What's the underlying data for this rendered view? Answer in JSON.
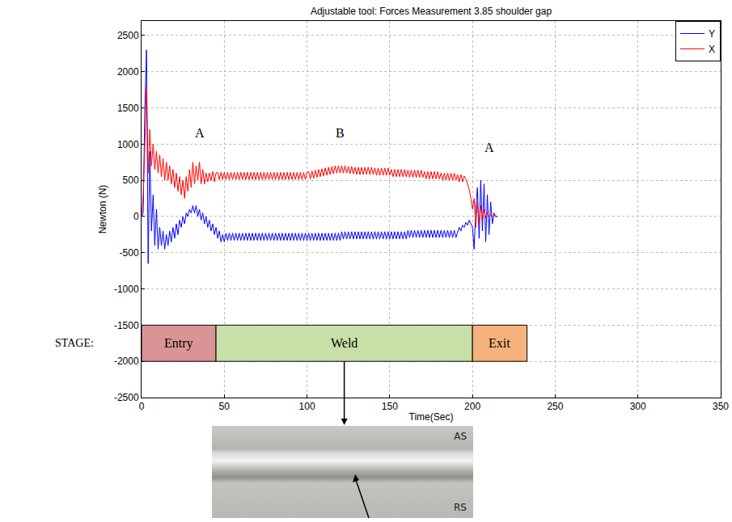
{
  "chart_data": {
    "type": "line",
    "title": "Adjustable tool: Forces Measurement 3.85 shoulder gap",
    "x_label": "Time(Sec)",
    "y_label": "Newton (N)",
    "x": [
      0,
      1,
      2,
      3,
      4,
      5,
      6,
      7,
      8,
      9,
      10,
      11,
      12,
      13,
      14,
      15,
      16,
      17,
      18,
      19,
      20,
      21,
      22,
      23,
      24,
      25,
      26,
      27,
      28,
      29,
      30,
      31,
      32,
      33,
      34,
      35,
      36,
      37,
      38,
      39,
      40,
      41,
      42,
      43,
      44,
      45,
      46,
      47,
      48,
      49,
      50,
      51,
      52,
      53,
      54,
      55,
      56,
      57,
      58,
      59,
      60,
      61,
      62,
      63,
      64,
      65,
      66,
      67,
      68,
      69,
      70,
      71,
      72,
      73,
      74,
      75,
      76,
      77,
      78,
      79,
      80,
      81,
      82,
      83,
      84,
      85,
      86,
      87,
      88,
      89,
      90,
      91,
      92,
      93,
      94,
      95,
      96,
      97,
      98,
      99,
      100,
      101,
      102,
      103,
      104,
      105,
      106,
      107,
      108,
      109,
      110,
      111,
      112,
      113,
      114,
      115,
      116,
      117,
      118,
      119,
      120,
      121,
      122,
      123,
      124,
      125,
      126,
      127,
      128,
      129,
      130,
      131,
      132,
      133,
      134,
      135,
      136,
      137,
      138,
      139,
      140,
      141,
      142,
      143,
      144,
      145,
      146,
      147,
      148,
      149,
      150,
      151,
      152,
      153,
      154,
      155,
      156,
      157,
      158,
      159,
      160,
      161,
      162,
      163,
      164,
      165,
      166,
      167,
      168,
      169,
      170,
      171,
      172,
      173,
      174,
      175,
      176,
      177,
      178,
      179,
      180,
      181,
      182,
      183,
      184,
      185,
      186,
      187,
      188,
      189,
      190,
      191,
      192,
      193,
      194,
      195,
      196,
      197,
      198,
      199,
      200,
      201,
      202,
      203,
      204,
      205,
      206,
      207,
      208,
      209,
      210,
      211,
      212,
      213,
      214,
      215
    ],
    "series": [
      {
        "name": "Y",
        "color": "#0000ff",
        "values": [
          0,
          50,
          1500,
          2300,
          -650,
          900,
          -200,
          300,
          -400,
          100,
          -450,
          -150,
          -400,
          -200,
          -450,
          -250,
          -400,
          -200,
          -350,
          -150,
          -300,
          -100,
          -250,
          -50,
          -150,
          0,
          -100,
          50,
          0,
          100,
          50,
          150,
          50,
          150,
          0,
          100,
          -50,
          50,
          -100,
          0,
          -150,
          -50,
          -200,
          -100,
          -250,
          -150,
          -300,
          -200,
          -350,
          -250,
          -350,
          -230,
          -330,
          -230,
          -330,
          -230,
          -330,
          -230,
          -330,
          -230,
          -330,
          -230,
          -330,
          -230,
          -330,
          -230,
          -330,
          -230,
          -330,
          -230,
          -330,
          -230,
          -330,
          -230,
          -330,
          -230,
          -330,
          -230,
          -330,
          -230,
          -330,
          -230,
          -330,
          -230,
          -330,
          -230,
          -330,
          -230,
          -330,
          -230,
          -330,
          -230,
          -330,
          -230,
          -330,
          -230,
          -330,
          -230,
          -330,
          -230,
          -330,
          -230,
          -330,
          -230,
          -330,
          -230,
          -330,
          -230,
          -330,
          -230,
          -330,
          -230,
          -330,
          -230,
          -330,
          -230,
          -330,
          -230,
          -330,
          -230,
          -330,
          -210,
          -310,
          -210,
          -310,
          -210,
          -310,
          -210,
          -310,
          -210,
          -310,
          -210,
          -310,
          -210,
          -310,
          -210,
          -310,
          -210,
          -310,
          -210,
          -310,
          -210,
          -310,
          -210,
          -310,
          -210,
          -310,
          -210,
          -310,
          -210,
          -310,
          -210,
          -310,
          -210,
          -310,
          -210,
          -310,
          -210,
          -310,
          -210,
          -310,
          -190,
          -290,
          -190,
          -290,
          -190,
          -290,
          -190,
          -290,
          -190,
          -290,
          -190,
          -290,
          -190,
          -290,
          -190,
          -290,
          -190,
          -290,
          -190,
          -290,
          -190,
          -290,
          -190,
          -290,
          -190,
          -290,
          -190,
          -290,
          -190,
          -290,
          -220,
          -150,
          -200,
          -120,
          -150,
          -80,
          -120,
          -50,
          -100,
          -150,
          -450,
          100,
          400,
          -300,
          500,
          -200,
          450,
          -350,
          300,
          -250,
          200,
          -100,
          50,
          0,
          0
        ]
      },
      {
        "name": "X",
        "color": "#ff0000",
        "values": [
          0,
          300,
          1000,
          1800,
          600,
          1200,
          700,
          1000,
          650,
          900,
          600,
          850,
          550,
          800,
          500,
          750,
          500,
          700,
          450,
          650,
          400,
          600,
          350,
          550,
          300,
          500,
          250,
          550,
          350,
          650,
          400,
          750,
          450,
          700,
          500,
          750,
          450,
          650,
          450,
          600,
          480,
          600,
          500,
          620,
          480,
          600,
          610,
          510,
          610,
          510,
          610,
          510,
          610,
          510,
          610,
          510,
          610,
          510,
          610,
          510,
          610,
          510,
          610,
          510,
          610,
          510,
          610,
          510,
          610,
          510,
          610,
          510,
          610,
          510,
          610,
          510,
          610,
          510,
          610,
          510,
          610,
          510,
          610,
          510,
          610,
          510,
          610,
          510,
          610,
          510,
          610,
          510,
          610,
          510,
          610,
          510,
          610,
          510,
          610,
          510,
          610,
          620,
          520,
          630,
          530,
          640,
          540,
          650,
          550,
          660,
          560,
          670,
          570,
          680,
          580,
          690,
          590,
          700,
          600,
          700,
          600,
          700,
          600,
          700,
          600,
          690,
          590,
          690,
          590,
          680,
          580,
          680,
          580,
          680,
          580,
          680,
          580,
          680,
          580,
          680,
          580,
          670,
          570,
          670,
          570,
          670,
          570,
          670,
          570,
          670,
          570,
          650,
          550,
          650,
          550,
          650,
          550,
          650,
          550,
          650,
          550,
          640,
          540,
          640,
          540,
          640,
          540,
          640,
          540,
          640,
          540,
          620,
          520,
          620,
          520,
          620,
          520,
          620,
          520,
          620,
          520,
          600,
          500,
          600,
          500,
          600,
          500,
          600,
          500,
          600,
          500,
          580,
          480,
          580,
          480,
          560,
          520,
          460,
          380,
          250,
          100,
          250,
          -150,
          200,
          -100,
          150,
          -50,
          100,
          -20,
          50,
          0,
          30,
          0,
          20,
          0,
          0
        ]
      }
    ],
    "xlim": [
      0,
      350
    ],
    "xticks": [
      0,
      50,
      100,
      150,
      200,
      250,
      300,
      350
    ],
    "ylim": [
      -2500,
      2700
    ],
    "yticks": [
      -2500,
      -2000,
      -1500,
      -1000,
      -500,
      0,
      500,
      1000,
      1500,
      2000,
      2500
    ],
    "grid": true,
    "legend": "top right",
    "annotations": [
      {
        "text": "A",
        "x": 35,
        "y": 1150
      },
      {
        "text": "B",
        "x": 120,
        "y": 1150
      },
      {
        "text": "A",
        "x": 210,
        "y": 950
      }
    ],
    "stage_label": "STAGE:",
    "stage_band": [
      -2000,
      -1500
    ],
    "stages": [
      {
        "name": "Entry",
        "start": 0,
        "end": 45,
        "color": "#d99595"
      },
      {
        "name": "Weld",
        "start": 45,
        "end": 200,
        "color": "#c8e0a8"
      },
      {
        "name": "Exit",
        "start": 200,
        "end": 233,
        "color": "#f5b27d"
      }
    ],
    "photo_labels": [
      "AS",
      "RS"
    ]
  }
}
